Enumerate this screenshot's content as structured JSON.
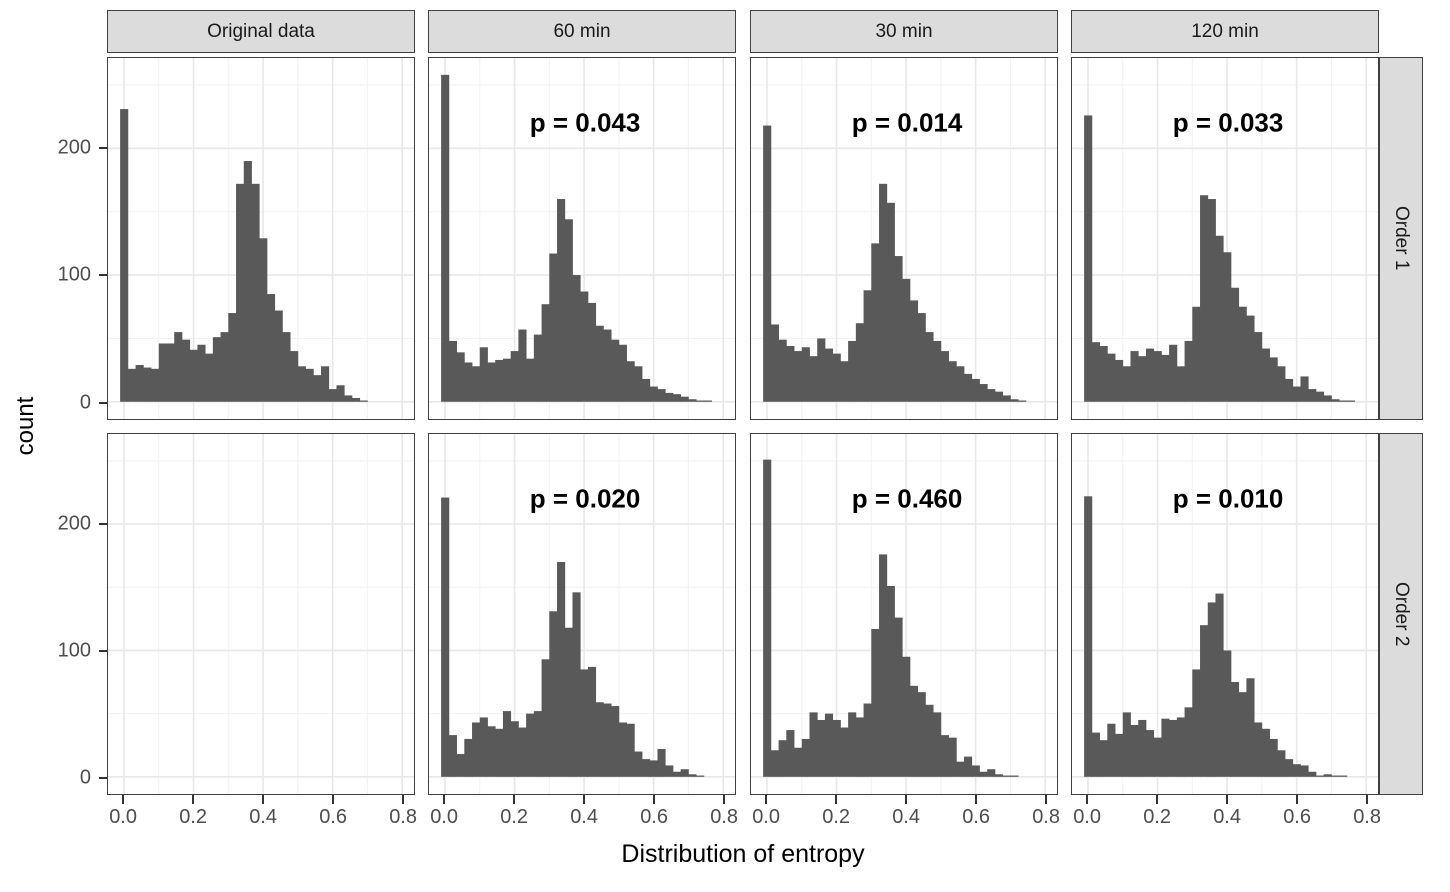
{
  "chart_data": {
    "type": "bar",
    "subtype": "faceted-histograms",
    "xlabel": "Distribution of entropy",
    "ylabel": "count",
    "col_facets": [
      "Original data",
      "60 min",
      "30 min",
      "120 min"
    ],
    "row_facets": [
      "Order 1",
      "Order 2"
    ],
    "x_ticks": [
      {
        "value": 0.0,
        "label": "0.0"
      },
      {
        "value": 0.2,
        "label": "0.2"
      },
      {
        "value": 0.4,
        "label": "0.4"
      },
      {
        "value": 0.6,
        "label": "0.6"
      },
      {
        "value": 0.8,
        "label": "0.8"
      }
    ],
    "y_ticks": [
      {
        "value": 0,
        "label": "0"
      },
      {
        "value": 100,
        "label": "100"
      },
      {
        "value": 200,
        "label": "200"
      }
    ],
    "xlim": [
      -0.046,
      0.834
    ],
    "ylim": [
      -13.6,
      271.3
    ],
    "bin_width": 0.02222,
    "grid": {
      "major_x": [
        0.0,
        0.2,
        0.4,
        0.6,
        0.8
      ],
      "minor_x": [
        0.1,
        0.3,
        0.5,
        0.7
      ],
      "major_y": [
        0,
        100,
        200
      ],
      "minor_y": [
        50,
        150,
        250
      ]
    },
    "panels": [
      {
        "row": "Order 1",
        "col": "Original data",
        "p_value": null,
        "bins": [
          231,
          26,
          29,
          27,
          26,
          46,
          46,
          55,
          49,
          41,
          45,
          38,
          51,
          55,
          70,
          172,
          190,
          172,
          129,
          85,
          72,
          55,
          40,
          28,
          26,
          21,
          28,
          10,
          13,
          5,
          3,
          1,
          0,
          0,
          0,
          0
        ]
      },
      {
        "row": "Order 1",
        "col": "60 min",
        "p_value": "p = 0.043",
        "bins": [
          258,
          48,
          39,
          31,
          28,
          43,
          31,
          33,
          34,
          40,
          57,
          34,
          53,
          77,
          117,
          160,
          144,
          100,
          87,
          78,
          60,
          57,
          49,
          45,
          32,
          28,
          18,
          12,
          10,
          7,
          6,
          4,
          2,
          1,
          1,
          0
        ]
      },
      {
        "row": "Order 1",
        "col": "30 min",
        "p_value": "p = 0.014",
        "bins": [
          218,
          61,
          49,
          44,
          40,
          43,
          36,
          50,
          42,
          38,
          32,
          48,
          62,
          88,
          125,
          172,
          157,
          115,
          97,
          80,
          70,
          55,
          48,
          40,
          32,
          28,
          22,
          18,
          14,
          10,
          8,
          5,
          2,
          1,
          0,
          0
        ]
      },
      {
        "row": "Order 1",
        "col": "120 min",
        "p_value": "p = 0.033",
        "bins": [
          226,
          47,
          44,
          38,
          33,
          28,
          40,
          36,
          42,
          40,
          37,
          45,
          28,
          48,
          75,
          163,
          160,
          131,
          118,
          90,
          75,
          68,
          55,
          42,
          35,
          28,
          18,
          12,
          20,
          10,
          8,
          5,
          2,
          1,
          1,
          0
        ]
      },
      {
        "row": "Order 2",
        "col": "Original data",
        "p_value": null,
        "bins": []
      },
      {
        "row": "Order 2",
        "col": "60 min",
        "p_value": "p = 0.020",
        "bins": [
          221,
          33,
          18,
          30,
          43,
          47,
          40,
          38,
          52,
          44,
          39,
          50,
          52,
          93,
          131,
          170,
          118,
          146,
          85,
          87,
          59,
          58,
          56,
          43,
          42,
          20,
          14,
          13,
          22,
          9,
          4,
          6,
          2,
          1,
          0,
          0
        ]
      },
      {
        "row": "Order 2",
        "col": "30 min",
        "p_value": "p = 0.460",
        "bins": [
          251,
          21,
          29,
          37,
          23,
          30,
          51,
          45,
          50,
          45,
          39,
          51,
          47,
          58,
          117,
          176,
          151,
          126,
          95,
          72,
          67,
          57,
          51,
          33,
          31,
          12,
          16,
          9,
          4,
          6,
          2,
          1,
          1,
          0,
          0,
          0
        ]
      },
      {
        "row": "Order 2",
        "col": "120 min",
        "p_value": "p = 0.010",
        "bins": [
          222,
          35,
          29,
          42,
          34,
          51,
          41,
          45,
          37,
          31,
          46,
          45,
          47,
          55,
          85,
          120,
          138,
          145,
          100,
          75,
          67,
          78,
          43,
          38,
          30,
          21,
          14,
          10,
          9,
          4,
          1,
          2,
          1,
          1,
          0,
          0
        ]
      }
    ],
    "colors": {
      "bar": "#595959",
      "strip_bg": "#dcdcdc",
      "strip_border": "#404040",
      "panel_border": "#404040",
      "grid_major": "#e8e8e8",
      "grid_minor": "#f2f2f2",
      "axis_text": "#4d4d4d",
      "tick_mark": "#333333",
      "annotation_text": "#000000"
    }
  }
}
